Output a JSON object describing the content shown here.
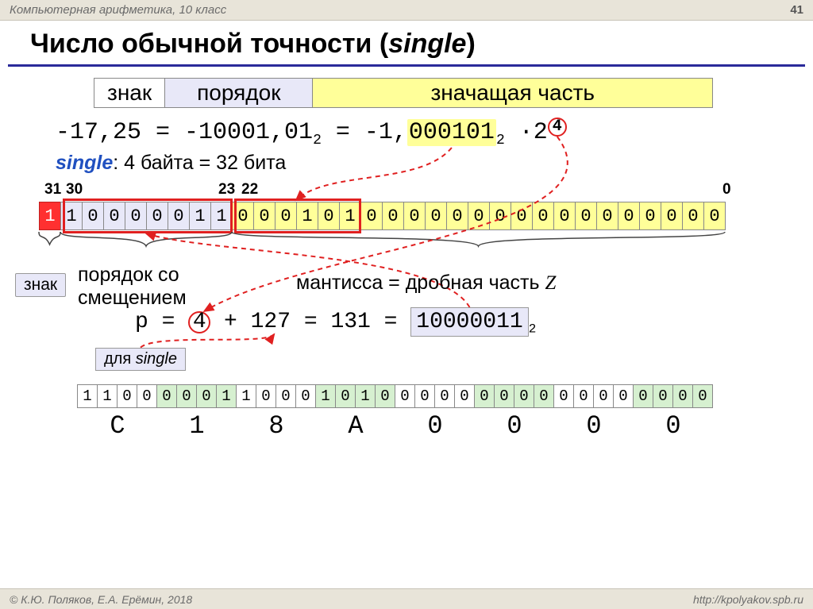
{
  "topbar": {
    "left": "Компьютерная арифметика, 10 класс",
    "page": "41"
  },
  "title": {
    "pre": "Число обычной точности (",
    "em": "single",
    "post": ")"
  },
  "headerStrip": {
    "znak": "знак",
    "por": "порядок",
    "man": "значащая часть"
  },
  "eq": {
    "lhs": "-17,25 = -10001,01",
    "sub1": "2",
    "mid": " = -1,",
    "mantissa": "000101",
    "sub2": "2",
    "dotbase": " ·2",
    "sup4": "4"
  },
  "singleLine": {
    "kw": "single",
    "rest": ": 4 байта = 32 бита"
  },
  "indices": {
    "i31": "31",
    "i30": "30",
    "i23": "23",
    "i22": "22",
    "i0": "0"
  },
  "bits": {
    "cells": [
      "1",
      "1",
      "0",
      "0",
      "0",
      "0",
      "0",
      "1",
      "1",
      "0",
      "0",
      "0",
      "1",
      "0",
      "1",
      "0",
      "0",
      "0",
      "0",
      "0",
      "0",
      "0",
      "0",
      "0",
      "0",
      "0",
      "0",
      "0",
      "0",
      "0",
      "0",
      "0"
    ],
    "signBg": "#ff3030",
    "expBg": "#e8e8f8",
    "manBg": "#ffff99",
    "redbox_color": "#e02020"
  },
  "znakLabel": "знак",
  "porLabel_l1": "порядок со",
  "porLabel_l2": "смещением",
  "mantLabel_pre": "мантисса = дробная часть ",
  "mantLabel_z": "Z",
  "pEq": {
    "p": "p = ",
    "four": "4",
    "plus": " + 127 = 131 = ",
    "bin": "10000011",
    "sub": "2"
  },
  "forSingle": {
    "pre": "для ",
    "it": "single"
  },
  "hex": {
    "bits": [
      "1",
      "1",
      "0",
      "0",
      "0",
      "0",
      "0",
      "1",
      "1",
      "0",
      "0",
      "0",
      "1",
      "0",
      "1",
      "0",
      "0",
      "0",
      "0",
      "0",
      "0",
      "0",
      "0",
      "0",
      "0",
      "0",
      "0",
      "0",
      "0",
      "0",
      "0",
      "0"
    ],
    "greenGroups": [
      1,
      3,
      5,
      7
    ],
    "digits": [
      "C",
      "1",
      "8",
      "A",
      "0",
      "0",
      "0",
      "0"
    ]
  },
  "footer": {
    "left": "© К.Ю. Поляков, Е.А. Ерёмин, 2018",
    "right": "http://kpolyakov.spb.ru"
  },
  "colors": {
    "dash": "#e02020",
    "expBg": "#e8e8f8",
    "manBg": "#ffff99",
    "green": "#d6f0d0",
    "titleRule": "#2a2a9a"
  }
}
